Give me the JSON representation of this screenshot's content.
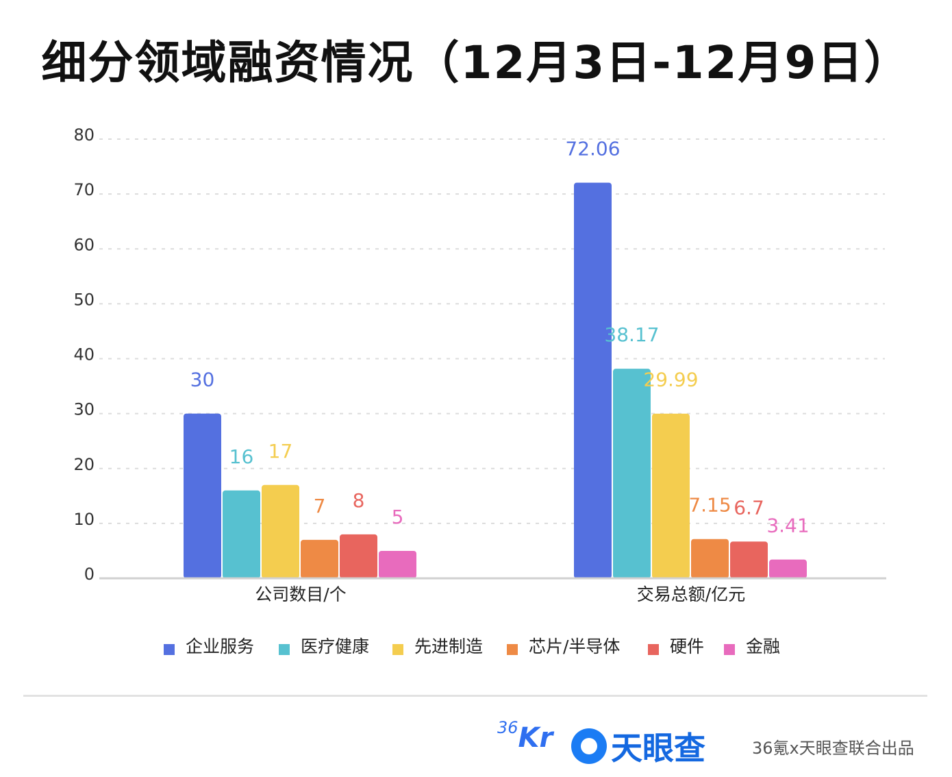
{
  "title": "细分领域融资情况（12月3日-12月9日）",
  "chart_data": {
    "type": "bar",
    "title": "细分领域融资情况（12月3日-12月9日）",
    "categories": [
      "公司数目/个",
      "交易总额/亿元"
    ],
    "series": [
      {
        "name": "企业服务",
        "color": "#5470e0",
        "values": [
          30,
          72.06
        ],
        "labels": [
          "30",
          "72.06"
        ]
      },
      {
        "name": "医疗健康",
        "color": "#57c1d0",
        "values": [
          16,
          38.17
        ],
        "labels": [
          "16",
          "38.17"
        ]
      },
      {
        "name": "先进制造",
        "color": "#f4cd4f",
        "values": [
          17,
          29.99
        ],
        "labels": [
          "17",
          "29.99"
        ]
      },
      {
        "name": "芯片/半导体",
        "color": "#ee8a45",
        "values": [
          7,
          7.15
        ],
        "labels": [
          "7",
          "7.15"
        ]
      },
      {
        "name": "硬件",
        "color": "#e8655e",
        "values": [
          8,
          6.7
        ],
        "labels": [
          "8",
          "6.7"
        ]
      },
      {
        "name": "金融",
        "color": "#e86bbd",
        "values": [
          5,
          3.41
        ],
        "labels": [
          "5",
          "3.41"
        ]
      }
    ],
    "ylim": [
      0,
      80
    ],
    "yticks": [
      "0",
      "10",
      "20",
      "30",
      "40",
      "50",
      "60",
      "70",
      "80"
    ],
    "grid": true,
    "legend": "bottom"
  },
  "footer": {
    "logo_36kr": "36Kr",
    "logo_36kr_sup": "36",
    "logo_36kr_main": "Kr",
    "logo_tianyancha": "天眼查",
    "credit": "36氪x天眼查联合出品"
  }
}
